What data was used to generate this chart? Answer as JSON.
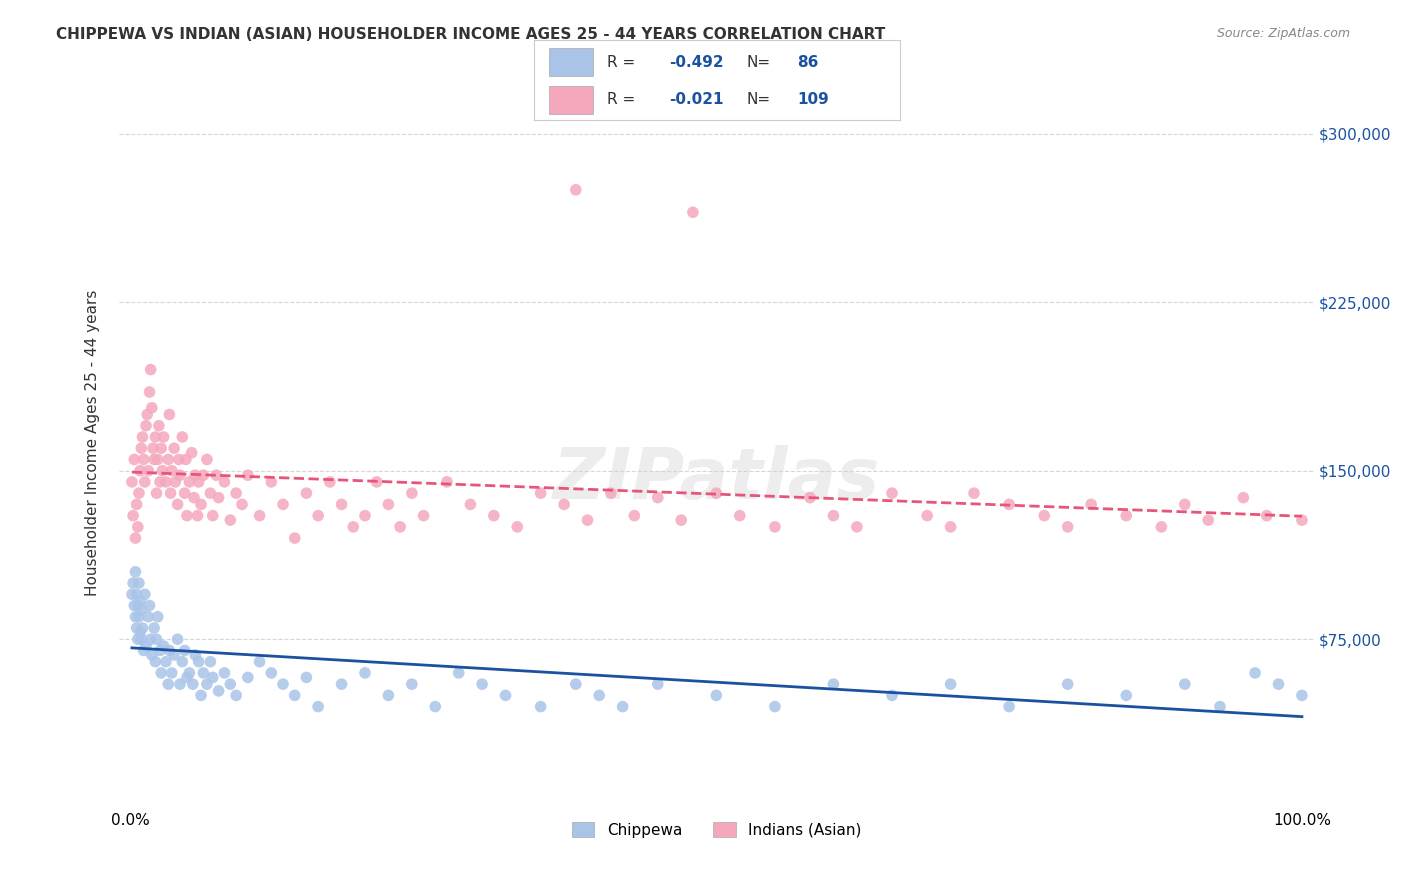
{
  "title": "CHIPPEWA VS INDIAN (ASIAN) HOUSEHOLDER INCOME AGES 25 - 44 YEARS CORRELATION CHART",
  "source": "Source: ZipAtlas.com",
  "xlabel": "",
  "ylabel": "Householder Income Ages 25 - 44 years",
  "xlim": [
    0,
    1
  ],
  "ylim": [
    0,
    325000
  ],
  "yticks": [
    0,
    75000,
    150000,
    225000,
    300000
  ],
  "ytick_labels": [
    "",
    "$75,000",
    "$150,000",
    "$225,000",
    "$300,000"
  ],
  "xtick_labels": [
    "0.0%",
    "100.0%"
  ],
  "background_color": "#ffffff",
  "grid_color": "#cccccc",
  "chippewa_color": "#aac4e8",
  "indian_color": "#f5a8bc",
  "chippewa_line_color": "#1a52a0",
  "indian_line_color": "#e8557a",
  "chippewa_R": -0.492,
  "chippewa_N": 86,
  "indian_R": -0.021,
  "indian_N": 109,
  "watermark": "ZIPatlas",
  "legend_R_color": "#1a52a0",
  "legend_N_color": "#1a52a0",
  "chippewa_x": [
    0.001,
    0.002,
    0.003,
    0.004,
    0.004,
    0.005,
    0.005,
    0.006,
    0.006,
    0.007,
    0.007,
    0.008,
    0.008,
    0.009,
    0.009,
    0.01,
    0.011,
    0.012,
    0.013,
    0.015,
    0.016,
    0.017,
    0.018,
    0.02,
    0.021,
    0.022,
    0.023,
    0.025,
    0.026,
    0.028,
    0.03,
    0.032,
    0.033,
    0.035,
    0.037,
    0.04,
    0.042,
    0.044,
    0.046,
    0.048,
    0.05,
    0.053,
    0.055,
    0.058,
    0.06,
    0.062,
    0.065,
    0.068,
    0.07,
    0.075,
    0.08,
    0.085,
    0.09,
    0.1,
    0.11,
    0.12,
    0.13,
    0.14,
    0.15,
    0.16,
    0.18,
    0.2,
    0.22,
    0.24,
    0.26,
    0.28,
    0.3,
    0.32,
    0.35,
    0.38,
    0.4,
    0.42,
    0.45,
    0.5,
    0.55,
    0.6,
    0.65,
    0.7,
    0.75,
    0.8,
    0.85,
    0.9,
    0.93,
    0.96,
    0.98,
    1.0
  ],
  "chippewa_y": [
    95000,
    100000,
    90000,
    85000,
    105000,
    80000,
    95000,
    75000,
    90000,
    85000,
    100000,
    78000,
    92000,
    88000,
    75000,
    80000,
    70000,
    95000,
    72000,
    85000,
    90000,
    75000,
    68000,
    80000,
    65000,
    75000,
    85000,
    70000,
    60000,
    72000,
    65000,
    55000,
    70000,
    60000,
    68000,
    75000,
    55000,
    65000,
    70000,
    58000,
    60000,
    55000,
    68000,
    65000,
    50000,
    60000,
    55000,
    65000,
    58000,
    52000,
    60000,
    55000,
    50000,
    58000,
    65000,
    60000,
    55000,
    50000,
    58000,
    45000,
    55000,
    60000,
    50000,
    55000,
    45000,
    60000,
    55000,
    50000,
    45000,
    55000,
    50000,
    45000,
    55000,
    50000,
    45000,
    55000,
    50000,
    55000,
    45000,
    55000,
    50000,
    55000,
    45000,
    60000,
    55000,
    50000
  ],
  "indian_x": [
    0.001,
    0.002,
    0.003,
    0.004,
    0.005,
    0.006,
    0.007,
    0.008,
    0.009,
    0.01,
    0.011,
    0.012,
    0.013,
    0.014,
    0.015,
    0.016,
    0.017,
    0.018,
    0.019,
    0.02,
    0.021,
    0.022,
    0.023,
    0.024,
    0.025,
    0.026,
    0.027,
    0.028,
    0.03,
    0.032,
    0.033,
    0.034,
    0.035,
    0.037,
    0.038,
    0.04,
    0.041,
    0.042,
    0.044,
    0.046,
    0.047,
    0.048,
    0.05,
    0.052,
    0.054,
    0.055,
    0.057,
    0.058,
    0.06,
    0.062,
    0.065,
    0.068,
    0.07,
    0.073,
    0.075,
    0.08,
    0.085,
    0.09,
    0.095,
    0.1,
    0.11,
    0.12,
    0.13,
    0.14,
    0.15,
    0.16,
    0.17,
    0.18,
    0.19,
    0.2,
    0.21,
    0.22,
    0.23,
    0.24,
    0.25,
    0.27,
    0.29,
    0.31,
    0.33,
    0.35,
    0.37,
    0.39,
    0.41,
    0.43,
    0.45,
    0.47,
    0.5,
    0.52,
    0.55,
    0.58,
    0.6,
    0.62,
    0.65,
    0.68,
    0.7,
    0.72,
    0.75,
    0.78,
    0.8,
    0.82,
    0.85,
    0.88,
    0.9,
    0.92,
    0.95,
    0.97,
    1.0,
    0.38,
    0.48
  ],
  "indian_y": [
    145000,
    130000,
    155000,
    120000,
    135000,
    125000,
    140000,
    150000,
    160000,
    165000,
    155000,
    145000,
    170000,
    175000,
    150000,
    185000,
    195000,
    178000,
    160000,
    155000,
    165000,
    140000,
    155000,
    170000,
    145000,
    160000,
    150000,
    165000,
    145000,
    155000,
    175000,
    140000,
    150000,
    160000,
    145000,
    135000,
    155000,
    148000,
    165000,
    140000,
    155000,
    130000,
    145000,
    158000,
    138000,
    148000,
    130000,
    145000,
    135000,
    148000,
    155000,
    140000,
    130000,
    148000,
    138000,
    145000,
    128000,
    140000,
    135000,
    148000,
    130000,
    145000,
    135000,
    120000,
    140000,
    130000,
    145000,
    135000,
    125000,
    130000,
    145000,
    135000,
    125000,
    140000,
    130000,
    145000,
    135000,
    130000,
    125000,
    140000,
    135000,
    128000,
    140000,
    130000,
    138000,
    128000,
    140000,
    130000,
    125000,
    138000,
    130000,
    125000,
    140000,
    130000,
    125000,
    140000,
    135000,
    130000,
    125000,
    135000,
    130000,
    125000,
    135000,
    128000,
    138000,
    130000,
    128000,
    275000,
    265000
  ]
}
